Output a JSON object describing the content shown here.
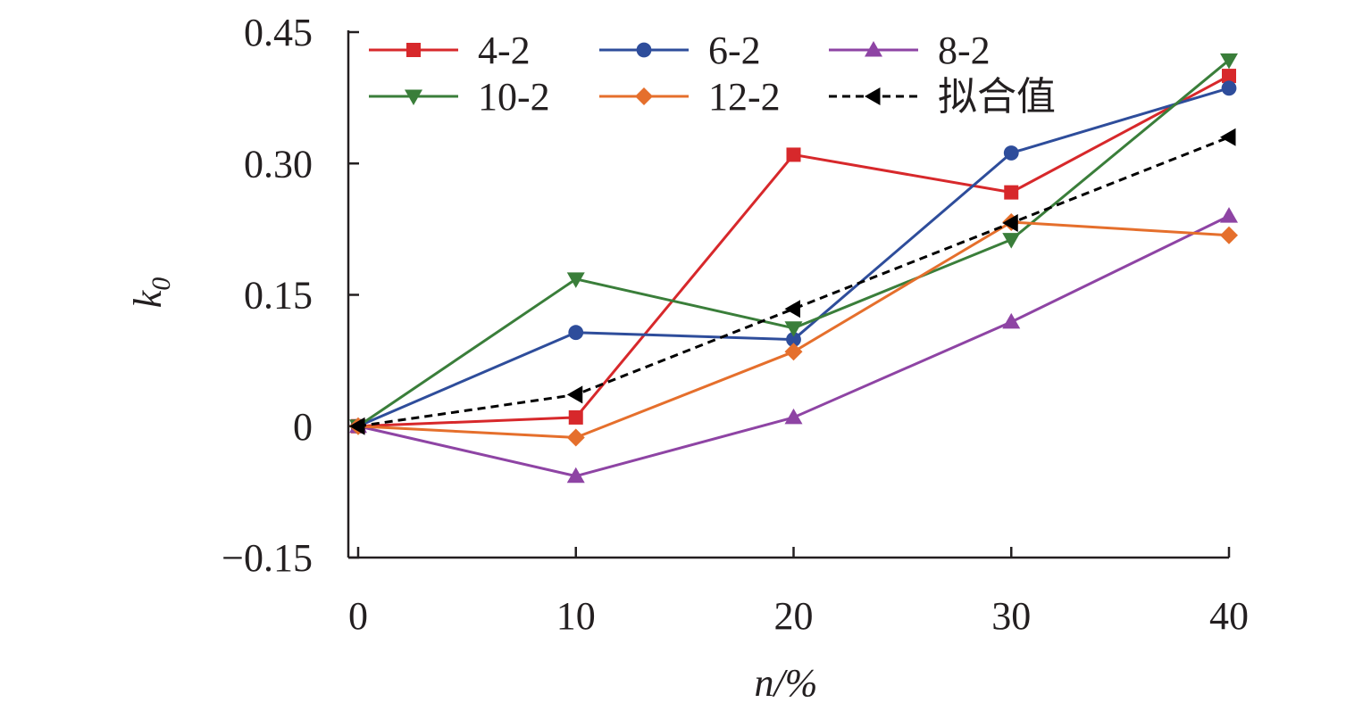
{
  "chart_data": {
    "type": "line",
    "xlabel": "n/%",
    "ylabel": "k0",
    "x": [
      0,
      10,
      20,
      30,
      40
    ],
    "x_ticks": [
      "0",
      "10",
      "20",
      "30",
      "40"
    ],
    "y_ticks": [
      "−0.15",
      "0",
      "0.15",
      "0.30",
      "0.45"
    ],
    "y_tick_values": [
      -0.15,
      0,
      0.15,
      0.3,
      0.45
    ],
    "xlim": [
      0,
      40
    ],
    "ylim": [
      -0.15,
      0.45
    ],
    "grid": false,
    "legend_position": "top",
    "series": [
      {
        "name": "4-2",
        "color": "#d7282b",
        "marker": "square",
        "dashed": false,
        "values": [
          0,
          0.01,
          0.31,
          0.267,
          0.4
        ]
      },
      {
        "name": "6-2",
        "color": "#2e4d9b",
        "marker": "circle",
        "dashed": false,
        "values": [
          0,
          0.107,
          0.099,
          0.312,
          0.386
        ]
      },
      {
        "name": "8-2",
        "color": "#8e44a4",
        "marker": "triangle-up",
        "dashed": false,
        "values": [
          0,
          -0.057,
          0.01,
          0.119,
          0.24
        ]
      },
      {
        "name": "10-2",
        "color": "#3a7e3a",
        "marker": "triangle-down",
        "dashed": false,
        "values": [
          0,
          0.168,
          0.112,
          0.213,
          0.418
        ]
      },
      {
        "name": "12-2",
        "color": "#e56f2c",
        "marker": "diamond",
        "dashed": false,
        "values": [
          0,
          -0.013,
          0.085,
          0.233,
          0.218
        ]
      },
      {
        "name": "拟合值",
        "color": "#000000",
        "marker": "triangle-left",
        "dashed": true,
        "values": [
          0,
          0.036,
          0.134,
          0.232,
          0.33
        ]
      }
    ]
  }
}
